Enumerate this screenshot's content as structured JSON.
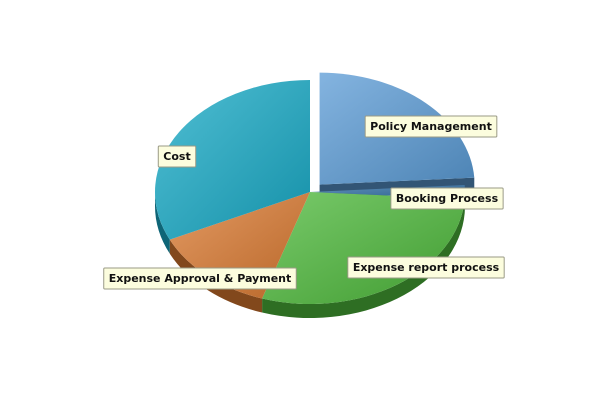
{
  "chart_data": {
    "type": "pie",
    "categories": [
      "Policy Management",
      "Booking Process",
      "Expense report process",
      "Expense Approval & Payment",
      "Cost"
    ],
    "values": [
      24,
      2,
      29,
      13,
      32
    ],
    "colors": {
      "Policy Management": "#5b9bd5",
      "Booking Process": "#2e6da4",
      "Expense report process": "#4cb83a",
      "Expense Approval & Payment": "#d9782f",
      "Cost": "#17a9c6"
    },
    "exploded": [
      "Policy Management"
    ],
    "style": "3d",
    "legend": "none"
  }
}
